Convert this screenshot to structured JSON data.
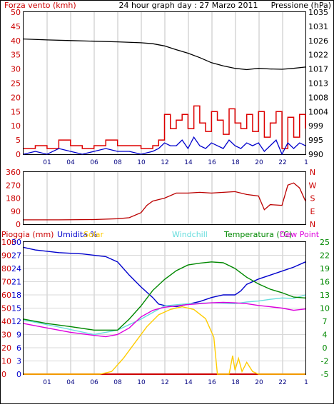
{
  "chart_data": [
    {
      "type": "line",
      "title": "24 hour graph day : 27 Marzo 2011",
      "xlabel": "",
      "x_ticks": [
        "01",
        "04",
        "06",
        "08",
        "10",
        "12",
        "14",
        "16",
        "18",
        "20",
        "22",
        "1"
      ],
      "left_axis": {
        "label": "Forza vento (kmh)",
        "color": "#cc0000",
        "ylim": [
          0,
          50
        ],
        "ticks": [
          "0",
          "5",
          "10",
          "15",
          "20",
          "25",
          "30",
          "35",
          "40",
          "45",
          "50"
        ]
      },
      "right_axis": {
        "label": "Pressione (hPa)",
        "color": "#000000",
        "ylim": [
          990,
          1035
        ],
        "ticks": [
          "990",
          "995",
          "999",
          "1004",
          "1008",
          "1013",
          "1017",
          "1022",
          "1026",
          "1031",
          "1035"
        ]
      },
      "series": [
        {
          "name": "",
          "color": "#000000",
          "axis": "right",
          "x": [
            0,
            2,
            4,
            6,
            8,
            10,
            11,
            12,
            13,
            14,
            15,
            16,
            17,
            18,
            19,
            20,
            21,
            22,
            23,
            24
          ],
          "values": [
            1026.5,
            1026.2,
            1026,
            1025.8,
            1025.6,
            1025.3,
            1025,
            1024.3,
            1023.1,
            1022,
            1020.6,
            1019,
            1018,
            1017.2,
            1016.8,
            1017.2,
            1017.0,
            1016.9,
            1017.2,
            1017.6
          ]
        },
        {
          "name": "",
          "color": "#dd0000",
          "axis": "left",
          "x": [
            0,
            1,
            2,
            3,
            4,
            5,
            6,
            7,
            8,
            9,
            10,
            11,
            11.5,
            12,
            12.5,
            13,
            13.5,
            14,
            14.5,
            15,
            15.5,
            16,
            16.5,
            17,
            17.5,
            18,
            18.5,
            19,
            19.5,
            20,
            20.5,
            21,
            21.5,
            22,
            22.5,
            23,
            23.5,
            24
          ],
          "values": [
            2,
            3,
            2,
            5,
            3,
            2,
            3,
            5,
            3,
            3,
            2,
            3,
            5,
            14,
            9,
            12,
            14,
            9,
            17,
            11,
            8,
            15,
            12,
            7,
            16,
            11,
            9,
            14,
            8,
            15,
            6,
            11,
            15,
            2,
            13,
            6,
            14,
            9
          ]
        },
        {
          "name": "",
          "color": "#0000cc",
          "axis": "left",
          "x": [
            0,
            1,
            2,
            3,
            4,
            5,
            6,
            7,
            8,
            9,
            10,
            11,
            11.5,
            12,
            12.5,
            13,
            13.5,
            14,
            14.5,
            15,
            15.5,
            16,
            16.5,
            17,
            17.5,
            18,
            18.5,
            19,
            19.5,
            20,
            20.5,
            21,
            21.5,
            22,
            22.5,
            23,
            23.5,
            24
          ],
          "values": [
            0,
            1,
            0,
            2,
            1,
            0,
            1,
            2,
            1,
            1,
            0,
            1,
            2,
            4,
            3,
            3,
            5,
            2,
            6,
            3,
            2,
            4,
            3,
            2,
            5,
            3,
            2,
            4,
            3,
            4,
            1,
            3,
            5,
            0,
            4,
            2,
            4,
            3
          ]
        }
      ]
    },
    {
      "type": "line",
      "title": "",
      "left_axis": {
        "ylim": [
          0,
          360
        ],
        "ticks": [
          "0",
          "90",
          "180",
          "270",
          "360"
        ]
      },
      "right_axis": {
        "ticks": [
          "N",
          "E",
          "S",
          "W",
          "N"
        ],
        "color": "#cc0000"
      },
      "x_ticks": [],
      "series": [
        {
          "name": "",
          "color": "#bb0000",
          "x": [
            0,
            3,
            6,
            8,
            9,
            10,
            10.5,
            11,
            12,
            13,
            14,
            15,
            16,
            17,
            18,
            19,
            20,
            20.5,
            21,
            22,
            22.5,
            23,
            23.5,
            24
          ],
          "values": [
            30,
            30,
            32,
            38,
            45,
            80,
            130,
            160,
            180,
            215,
            215,
            220,
            215,
            220,
            225,
            205,
            195,
            100,
            135,
            130,
            270,
            285,
            250,
            160
          ]
        }
      ]
    },
    {
      "type": "line",
      "title": "",
      "x_ticks": [
        "01",
        "04",
        "06",
        "08",
        "10",
        "12",
        "14",
        "16",
        "18",
        "20",
        "22",
        "1"
      ],
      "legend": [
        "Pioggia (mm)",
        "Umidita %",
        "Solar",
        "Windchill",
        "Temperatura (°C)",
        "Dew Point"
      ],
      "left_axis": {
        "ylim": [
          0,
          100
        ],
        "ticks": [
          "0",
          "10",
          "20",
          "30",
          "40",
          "50",
          "60",
          "70",
          "80",
          "90",
          "100"
        ]
      },
      "left_axis_2": {
        "ylim": [
          0,
          30
        ],
        "ticks": [
          "0",
          "3",
          "6",
          "9",
          "12",
          "15",
          "18",
          "21",
          "24",
          "27",
          "30"
        ]
      },
      "right_axis": {
        "ylim": [
          -5,
          25
        ],
        "ticks": [
          "-5",
          "-2",
          "0",
          "4",
          "7",
          "10",
          "13",
          "16",
          "19",
          "22",
          "25"
        ]
      },
      "series": [
        {
          "name": "Pioggia (mm)",
          "color": "#cc0000",
          "axis": "left",
          "x": [
            0,
            24
          ],
          "values": [
            0,
            0
          ]
        },
        {
          "name": "Umidita %",
          "color": "#0000cc",
          "axis": "left",
          "x": [
            0,
            1,
            3,
            5,
            7,
            8,
            9,
            10,
            11,
            11.5,
            12,
            13,
            14,
            15,
            16,
            17,
            18,
            18.5,
            19,
            20,
            21,
            22,
            23,
            24
          ],
          "values": [
            96,
            94,
            92,
            91,
            89,
            85,
            75,
            66,
            58,
            53,
            52,
            51,
            53,
            55,
            58,
            60,
            60,
            63,
            68,
            72,
            75,
            78,
            81,
            85
          ]
        },
        {
          "name": "Solar",
          "color": "#ffcc00",
          "axis": "left",
          "x": [
            0,
            6.5,
            7.5,
            8.5,
            9.5,
            10.5,
            11.5,
            12.5,
            13.5,
            14.5,
            15.5,
            16.2,
            16.5,
            17,
            17.5,
            17.8,
            18,
            18.3,
            18.6,
            19,
            19.5,
            20,
            24
          ],
          "values": [
            0,
            0,
            2,
            12,
            24,
            36,
            45,
            49,
            51,
            49,
            42,
            28,
            0,
            0,
            0,
            14,
            3,
            12,
            2,
            9,
            2,
            0,
            0
          ]
        },
        {
          "name": "Windchill",
          "color": "#66dddd",
          "axis": "right",
          "x": [
            0,
            3,
            6,
            8,
            10,
            12,
            14,
            16,
            18,
            19,
            20,
            21,
            22,
            23,
            24
          ],
          "values": [
            7.3,
            5.7,
            4.0,
            5.0,
            7.5,
            10.5,
            11.0,
            11.2,
            11.0,
            11.4,
            11.6,
            12.0,
            12.3,
            12.2,
            13.0
          ]
        },
        {
          "name": "Temperatura (°C)",
          "color": "#008800",
          "axis": "right",
          "x": [
            0,
            2,
            4,
            6,
            8,
            9,
            10,
            11,
            12,
            13,
            14,
            15,
            16,
            17,
            18,
            19,
            20,
            21,
            22,
            23,
            24
          ],
          "values": [
            7.5,
            6.5,
            5.8,
            5.0,
            5.0,
            7.5,
            10.5,
            14.0,
            16.5,
            18.5,
            19.8,
            20.2,
            20.5,
            20.3,
            19.0,
            17.0,
            15.5,
            14.3,
            13.5,
            12.5,
            12.3
          ]
        },
        {
          "name": "Dew Point",
          "color": "#dd00dd",
          "axis": "right",
          "x": [
            0,
            2,
            4,
            6,
            7,
            8,
            9,
            10,
            11,
            12,
            13,
            14,
            15,
            16,
            17,
            18,
            19,
            20,
            21,
            22,
            23,
            24
          ],
          "values": [
            6.5,
            5.5,
            4.5,
            3.8,
            3.5,
            4.0,
            5.5,
            8.0,
            9.5,
            10.2,
            10.5,
            10.8,
            11.0,
            11.2,
            11.3,
            11.2,
            11.0,
            10.6,
            10.3,
            10.0,
            9.5,
            9.8
          ]
        }
      ]
    }
  ]
}
